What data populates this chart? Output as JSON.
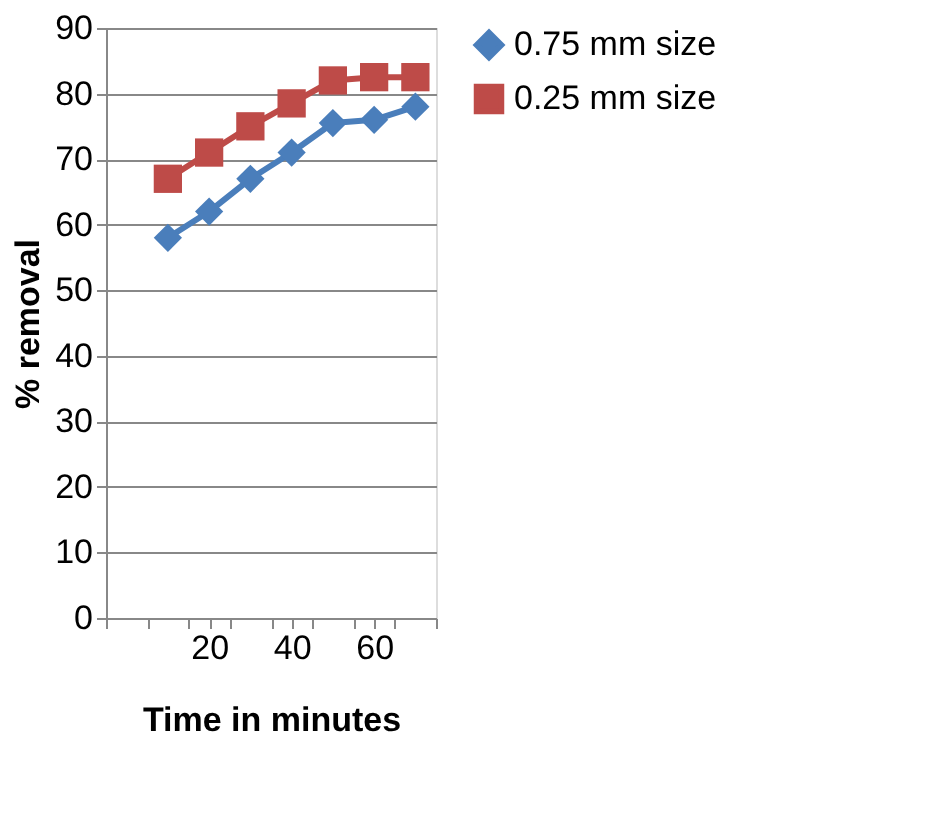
{
  "chart_data": {
    "type": "line",
    "xlabel": "Time in minutes",
    "ylabel": "% removal",
    "x": [
      10,
      20,
      30,
      40,
      50,
      60,
      70
    ],
    "series": [
      {
        "name": "0.75 mm size",
        "color": "#4a7ebb",
        "marker": "diamond",
        "values": [
          58,
          62,
          67,
          71,
          75.5,
          76,
          78
        ]
      },
      {
        "name": "0.25 mm size",
        "color": "#be4b48",
        "marker": "square",
        "values": [
          67,
          71,
          75,
          78.5,
          82,
          82.5,
          82.5
        ]
      }
    ],
    "xlim": [
      -5,
      75
    ],
    "xticks": [
      {
        "value": -5,
        "label": null
      },
      {
        "value": 5,
        "label": null
      },
      {
        "value": 15,
        "label": null
      },
      20,
      {
        "value": 25,
        "label": null
      },
      {
        "value": 35,
        "label": null
      },
      40,
      {
        "value": 45,
        "label": null
      },
      {
        "value": 55,
        "label": null
      },
      60,
      {
        "value": 65,
        "label": null
      },
      {
        "value": 75,
        "label": null
      }
    ],
    "ylim": [
      0,
      90
    ],
    "yticks": [
      0,
      10,
      20,
      30,
      40,
      50,
      60,
      70,
      80,
      90
    ],
    "grid": "y",
    "legend": "right"
  }
}
